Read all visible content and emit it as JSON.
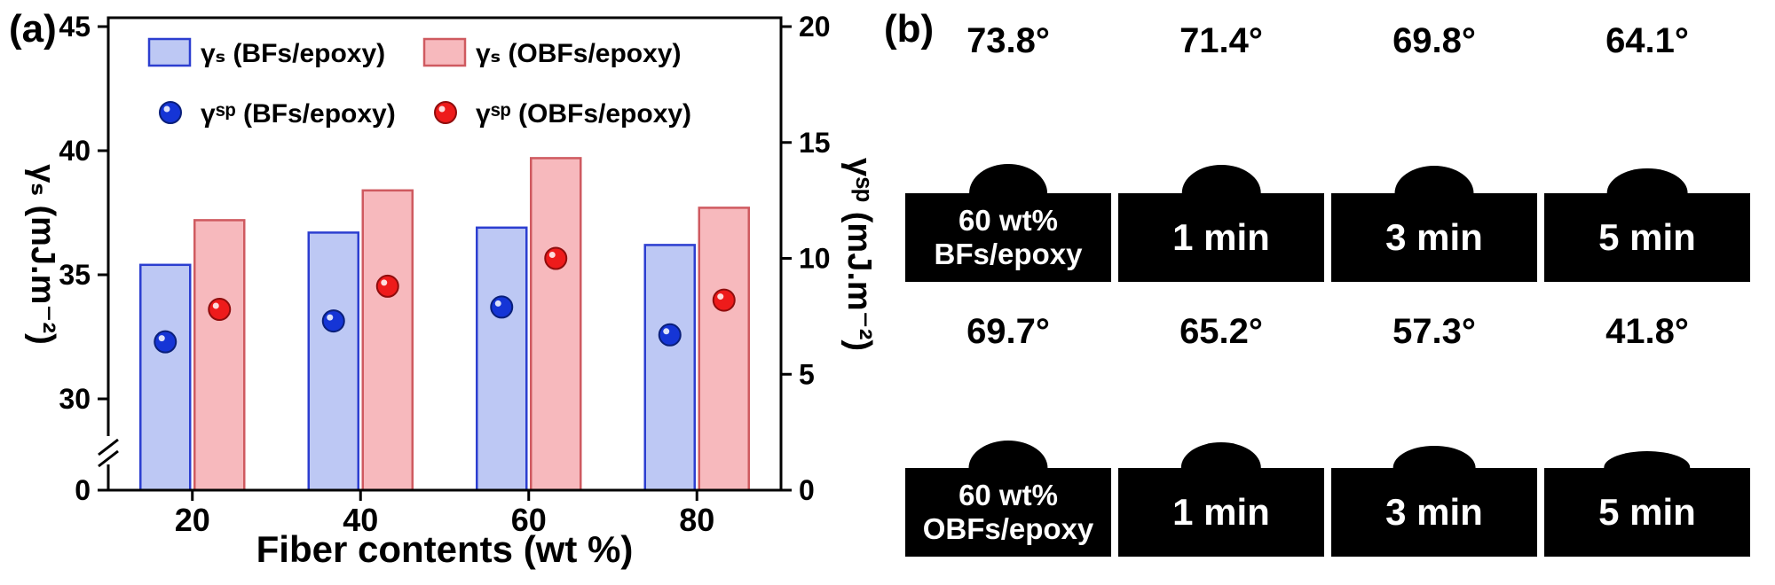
{
  "figure": {
    "panel_a_label": "(a)",
    "panel_b_label": "(b)"
  },
  "chart_data": {
    "type": "bar",
    "categories": [
      "20",
      "40",
      "60",
      "80"
    ],
    "xlabel": "Fiber contents (wt %)",
    "left_axis": {
      "label": "γₛ (mJ.m⁻²)",
      "ticks": [
        0,
        30,
        35,
        40,
        45
      ],
      "visible_range": [
        29,
        45
      ],
      "has_break": true
    },
    "right_axis": {
      "label": "γˢᵖ (mJ.m⁻²)",
      "ticks": [
        0,
        5,
        10,
        15,
        20
      ],
      "range": [
        0,
        20
      ]
    },
    "bar_series": [
      {
        "name": "γₛ (BFs/epoxy)",
        "axis": "left",
        "values": [
          35.4,
          36.7,
          36.9,
          36.2
        ],
        "fill": "#bdc8f4",
        "stroke": "#2c3ed0"
      },
      {
        "name": "γₛ (OBFs/epoxy)",
        "axis": "left",
        "values": [
          37.2,
          38.4,
          39.7,
          37.7
        ],
        "fill": "#f7b9bd",
        "stroke": "#cf5a60"
      }
    ],
    "point_series": [
      {
        "name": "γˢᵖ (BFs/epoxy)",
        "axis": "right",
        "values": [
          6.4,
          7.3,
          7.9,
          6.7
        ],
        "fill": "#1535d6",
        "stroke": "#0a1f7a"
      },
      {
        "name": "γˢᵖ (OBFs/epoxy)",
        "axis": "right",
        "values": [
          7.8,
          8.8,
          10.0,
          8.2
        ],
        "fill": "#ee1b1b",
        "stroke": "#8f0d0d"
      }
    ],
    "legend_position": "top-left-inside",
    "grid": false
  },
  "panel_b": {
    "label": "(b)",
    "rows": [
      {
        "samples": [
          {
            "angle_label": "73.8°",
            "angle_deg": 73.8,
            "caption": "60 wt%\nBFs/epoxy"
          },
          {
            "angle_label": "71.4°",
            "angle_deg": 71.4,
            "caption": "1 min"
          },
          {
            "angle_label": "69.8°",
            "angle_deg": 69.8,
            "caption": "3 min"
          },
          {
            "angle_label": "64.1°",
            "angle_deg": 64.1,
            "caption": "5 min"
          }
        ]
      },
      {
        "samples": [
          {
            "angle_label": "69.7°",
            "angle_deg": 69.7,
            "caption": "60 wt%\nOBFs/epoxy"
          },
          {
            "angle_label": "65.2°",
            "angle_deg": 65.2,
            "caption": "1 min"
          },
          {
            "angle_label": "57.3°",
            "angle_deg": 57.3,
            "caption": "3 min"
          },
          {
            "angle_label": "41.8°",
            "angle_deg": 41.8,
            "caption": "5 min"
          }
        ]
      }
    ]
  }
}
